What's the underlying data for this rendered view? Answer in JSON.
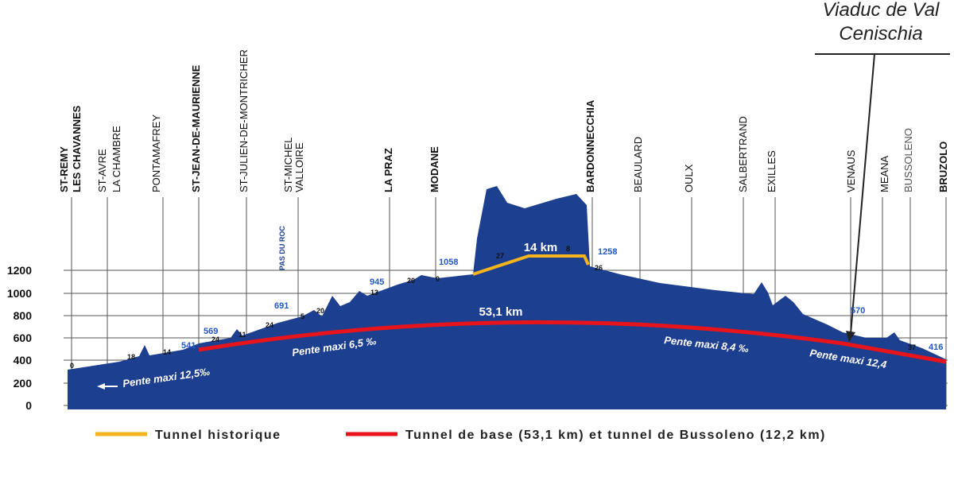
{
  "callout": {
    "lines": [
      "Viaduc de Val",
      "Cenischia"
    ]
  },
  "stations": [
    "ST-REMY",
    "LES CHAVANNES",
    "ST-AVRE",
    "LA CHAMBRE",
    "PONTAMAFREY",
    "ST-JEAN-DE-MAURIENNE",
    "ST-JULIEN-DE-MONTRICHER",
    "ST-MICHEL",
    "VALLOIRE",
    "LA PRAZ",
    "MODANE",
    "BARDONNECCHIA",
    "BEAULARD",
    "OULX",
    "SALBERTRAND",
    "EXILLES",
    "VENAUS",
    "MEANA",
    "BUSSOLENO",
    "BRUZOLO"
  ],
  "axis_labels": [
    "1200",
    "1000",
    "800",
    "600",
    "400",
    "200",
    "0"
  ],
  "pass_label": "PAS DU ROC",
  "altitudes": [
    "0",
    "18",
    "14",
    "541",
    "569",
    "24",
    "11",
    "24",
    "5",
    "691",
    "20",
    "945",
    "13",
    "20",
    "0",
    "1058",
    "27",
    "8",
    "26",
    "1258",
    "570",
    "37",
    "416"
  ],
  "tunnel_lengths": [
    "14 km",
    "53,1 km"
  ],
  "slopes": [
    "Pente maxi 12,5‰",
    "Pente maxi 6,5 ‰",
    "Pente maxi 8,4 ‰",
    "Pente maxi 12,4"
  ],
  "legend": [
    "Tunnel historique",
    "Tunnel de base (53,1 km) et tunnel de Bussoleno (12,2 km)"
  ]
}
